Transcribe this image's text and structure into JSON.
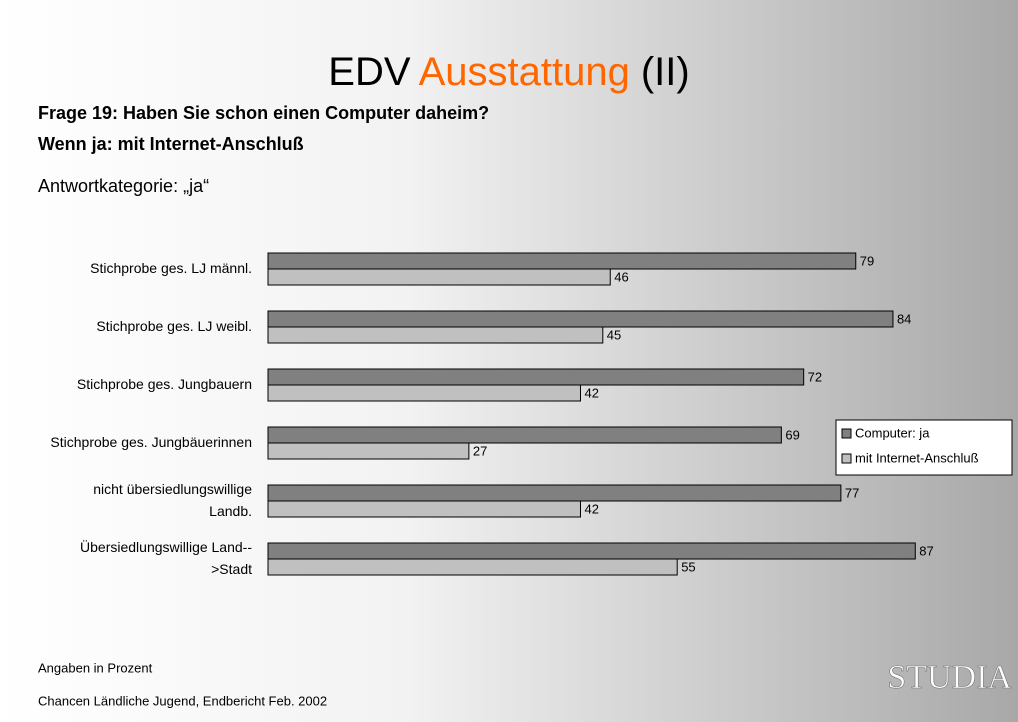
{
  "slide": {
    "title": [
      "EDV",
      "Ausstattung",
      "(II)"
    ],
    "title_colors": [
      "#000000",
      "#ff6600",
      "#000000"
    ],
    "question": [
      "Frage 19: Haben Sie schon einen Computer daheim?",
      "Wenn ja: mit Internet-Anschluß"
    ],
    "answer_category": "Antwortkategorie: „ja“",
    "footer": [
      "Angaben in Prozent",
      "Chancen Ländliche Jugend, Endbericht  Feb. 2002"
    ],
    "logo": "STUDIA"
  },
  "chart_data": {
    "type": "hbar",
    "categories": [
      "Stichprobe ges. LJ männl.",
      "Stichprobe ges. LJ weibl.",
      "Stichprobe ges. Jungbauern",
      "Stichprobe ges. Jungbäuerinnen",
      "nicht übersiedlungswillige\nLandb.",
      "Übersiedlungswillige Land--\n>Stadt"
    ],
    "series": [
      {
        "name": "Computer: ja",
        "color": "#808080",
        "values": [
          79,
          84,
          72,
          69,
          77,
          87
        ]
      },
      {
        "name": "mit Internet-Anschluß",
        "color": "#c0c0c0",
        "values": [
          46,
          45,
          42,
          27,
          42,
          55
        ]
      }
    ],
    "xlim": [
      0,
      100
    ],
    "legend": "right"
  }
}
